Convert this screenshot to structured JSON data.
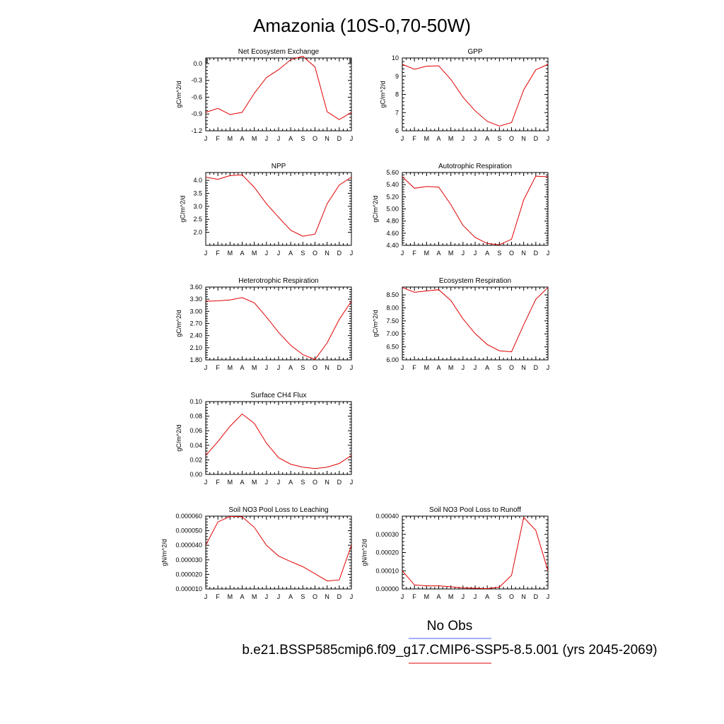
{
  "title": "Amazonia (10S-0,70-50W)",
  "legend": {
    "obs_label": "No Obs",
    "obs_color": "#4a5cf0",
    "model_label": "b.e21.BSSP585cmip6.f09_g17.CMIP6-SSP5-8.5.001 (yrs 2045-2069)",
    "model_color": "#e00000"
  },
  "chart_data": [
    {
      "type": "line",
      "title": "Net Ecosystem Exchange",
      "ylabel": "gC/m^2/d",
      "x": [
        "J",
        "F",
        "M",
        "A",
        "M",
        "J",
        "J",
        "A",
        "S",
        "O",
        "N",
        "D",
        "J"
      ],
      "ylim": [
        -1.2,
        0.1
      ],
      "yticks": [
        -1.2,
        -0.9,
        -0.6,
        -0.3,
        0.0,
        0.1
      ],
      "ytick_labels": [
        "-1.2",
        "-0.9",
        "-0.6",
        "-0.3",
        "0.0",
        ""
      ],
      "series": [
        {
          "color": "#e00000",
          "values": [
            -0.87,
            -0.8,
            -0.91,
            -0.87,
            -0.53,
            -0.25,
            -0.11,
            0.07,
            0.13,
            -0.06,
            -0.86,
            -1.0,
            -0.87
          ]
        }
      ]
    },
    {
      "type": "line",
      "title": "GPP",
      "ylabel": "gC/m^2/d",
      "x": [
        "J",
        "F",
        "M",
        "A",
        "M",
        "J",
        "J",
        "A",
        "S",
        "O",
        "N",
        "D",
        "J"
      ],
      "ylim": [
        6,
        10
      ],
      "yticks": [
        6,
        7,
        8,
        9,
        10
      ],
      "ytick_labels": [
        "6",
        "7",
        "8",
        "9",
        "10"
      ],
      "series": [
        {
          "color": "#e00000",
          "values": [
            9.65,
            9.38,
            9.55,
            9.57,
            8.82,
            7.85,
            7.1,
            6.52,
            6.26,
            6.45,
            8.25,
            9.35,
            9.65
          ]
        }
      ]
    },
    {
      "type": "line",
      "title": "NPP",
      "ylabel": "gC/m^2/d",
      "x": [
        "J",
        "F",
        "M",
        "A",
        "M",
        "J",
        "J",
        "A",
        "S",
        "O",
        "N",
        "D",
        "J"
      ],
      "ylim": [
        1.5,
        4.3
      ],
      "yticks": [
        2.0,
        2.5,
        3.0,
        3.5,
        4.0
      ],
      "ytick_labels": [
        "2.0",
        "2.5",
        "3.0",
        "3.5",
        "4.0"
      ],
      "series": [
        {
          "color": "#e00000",
          "values": [
            4.12,
            4.04,
            4.18,
            4.21,
            3.73,
            3.1,
            2.58,
            2.08,
            1.85,
            1.93,
            3.1,
            3.82,
            4.12
          ]
        }
      ]
    },
    {
      "type": "line",
      "title": "Autotrophic Respiration",
      "ylabel": "gC/m^2/d",
      "x": [
        "J",
        "F",
        "M",
        "A",
        "M",
        "J",
        "J",
        "A",
        "S",
        "O",
        "N",
        "D",
        "J"
      ],
      "ylim": [
        4.4,
        5.6
      ],
      "yticks": [
        4.4,
        4.6,
        4.8,
        5.0,
        5.2,
        5.4,
        5.6
      ],
      "ytick_labels": [
        "4.40",
        "4.60",
        "4.80",
        "5.00",
        "5.20",
        "5.40",
        "5.60"
      ],
      "series": [
        {
          "color": "#e00000",
          "values": [
            5.53,
            5.34,
            5.37,
            5.36,
            5.07,
            4.73,
            4.53,
            4.43,
            4.41,
            4.5,
            5.15,
            5.54,
            5.53
          ]
        }
      ]
    },
    {
      "type": "line",
      "title": "Heterotrophic Respiration",
      "ylabel": "gC/m^2/d",
      "x": [
        "J",
        "F",
        "M",
        "A",
        "M",
        "J",
        "J",
        "A",
        "S",
        "O",
        "N",
        "D",
        "J"
      ],
      "ylim": [
        1.8,
        3.6
      ],
      "yticks": [
        1.8,
        2.1,
        2.4,
        2.7,
        3.0,
        3.3,
        3.6
      ],
      "ytick_labels": [
        "1.80",
        "2.10",
        "2.40",
        "2.70",
        "3.00",
        "3.30",
        "3.60"
      ],
      "series": [
        {
          "color": "#e00000",
          "values": [
            3.25,
            3.26,
            3.28,
            3.34,
            3.21,
            2.86,
            2.48,
            2.16,
            1.93,
            1.81,
            2.22,
            2.8,
            3.25
          ]
        }
      ]
    },
    {
      "type": "line",
      "title": "Ecosystem Respiration",
      "ylabel": "gC/m^2/d",
      "x": [
        "J",
        "F",
        "M",
        "A",
        "M",
        "J",
        "J",
        "A",
        "S",
        "O",
        "N",
        "D",
        "J"
      ],
      "ylim": [
        6.0,
        8.8
      ],
      "yticks": [
        6.0,
        6.5,
        7.0,
        7.5,
        8.0,
        8.5
      ],
      "ytick_labels": [
        "6.00",
        "6.50",
        "7.00",
        "7.50",
        "8.00",
        "8.50"
      ],
      "series": [
        {
          "color": "#e00000",
          "values": [
            8.78,
            8.6,
            8.65,
            8.7,
            8.28,
            7.58,
            7.01,
            6.59,
            6.35,
            6.31,
            7.35,
            8.33,
            8.78
          ]
        }
      ]
    },
    {
      "type": "line",
      "title": "Surface CH4 Flux",
      "ylabel": "gC/m^2/d",
      "x": [
        "J",
        "F",
        "M",
        "A",
        "M",
        "J",
        "J",
        "A",
        "S",
        "O",
        "N",
        "D",
        "J"
      ],
      "ylim": [
        0,
        0.1
      ],
      "yticks": [
        0,
        0.02,
        0.04,
        0.06,
        0.08,
        0.1
      ],
      "ytick_labels": [
        "0.00",
        "0.02",
        "0.04",
        "0.06",
        "0.08",
        "0.10"
      ],
      "series": [
        {
          "color": "#e00000",
          "values": [
            0.026,
            0.045,
            0.066,
            0.083,
            0.07,
            0.043,
            0.023,
            0.014,
            0.01,
            0.008,
            0.01,
            0.015,
            0.026
          ]
        }
      ]
    },
    {
      "type": "line",
      "title": "Soil NO3 Pool Loss to Leaching",
      "ylabel": "gN/m^2/d",
      "x": [
        "J",
        "F",
        "M",
        "A",
        "M",
        "J",
        "J",
        "A",
        "S",
        "O",
        "N",
        "D",
        "J"
      ],
      "ylim": [
        1e-05,
        6e-05
      ],
      "yticks": [
        1e-05,
        2e-05,
        3e-05,
        4e-05,
        5e-05,
        6e-05
      ],
      "ytick_labels": [
        "0.000010",
        "0.000020",
        "0.000030",
        "0.000040",
        "0.000050",
        "0.000060"
      ],
      "series": [
        {
          "color": "#e00000",
          "values": [
            4e-05,
            5.6e-05,
            5.98e-05,
            5.95e-05,
            5.23e-05,
            4e-05,
            3.26e-05,
            2.88e-05,
            2.53e-05,
            2.05e-05,
            1.55e-05,
            1.62e-05,
            4e-05
          ]
        }
      ]
    },
    {
      "type": "line",
      "title": "Soil NO3 Pool Loss to Runoff",
      "ylabel": "gN/m^2/d",
      "x": [
        "J",
        "F",
        "M",
        "A",
        "M",
        "J",
        "J",
        "A",
        "S",
        "O",
        "N",
        "D",
        "J"
      ],
      "ylim": [
        0,
        0.0004
      ],
      "yticks": [
        0,
        0.0001,
        0.0002,
        0.0003,
        0.0004
      ],
      "ytick_labels": [
        "0.00000",
        "0.00010",
        "0.00020",
        "0.00030",
        "0.00040"
      ],
      "series": [
        {
          "color": "#e00000",
          "values": [
            0.0001,
            2.2e-05,
            1.7e-05,
            1.7e-05,
            1.2e-05,
            6e-06,
            4e-06,
            2e-06,
            1e-05,
            7.5e-05,
            0.000393,
            0.000322,
            0.0001
          ]
        }
      ]
    }
  ]
}
